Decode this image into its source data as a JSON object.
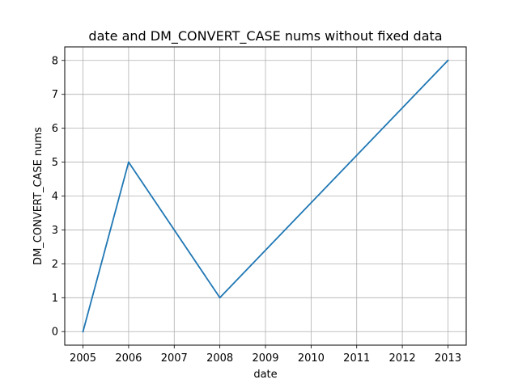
{
  "chart_data": {
    "type": "line",
    "title": "date and DM_CONVERT_CASE nums without fixed data",
    "xlabel": "date",
    "ylabel": "DM_CONVERT_CASE nums",
    "x": [
      2005,
      2006,
      2008,
      2013
    ],
    "series": [
      {
        "values": [
          0,
          5,
          1,
          8
        ],
        "color": "#1f77b4"
      }
    ],
    "xticks": [
      "2005",
      "2006",
      "2007",
      "2008",
      "2009",
      "2010",
      "2011",
      "2012",
      "2013"
    ],
    "yticks": [
      "0",
      "1",
      "2",
      "3",
      "4",
      "5",
      "6",
      "7",
      "8"
    ],
    "xlim": [
      2004.6,
      2013.4
    ],
    "ylim": [
      -0.4,
      8.4
    ],
    "grid": true
  }
}
